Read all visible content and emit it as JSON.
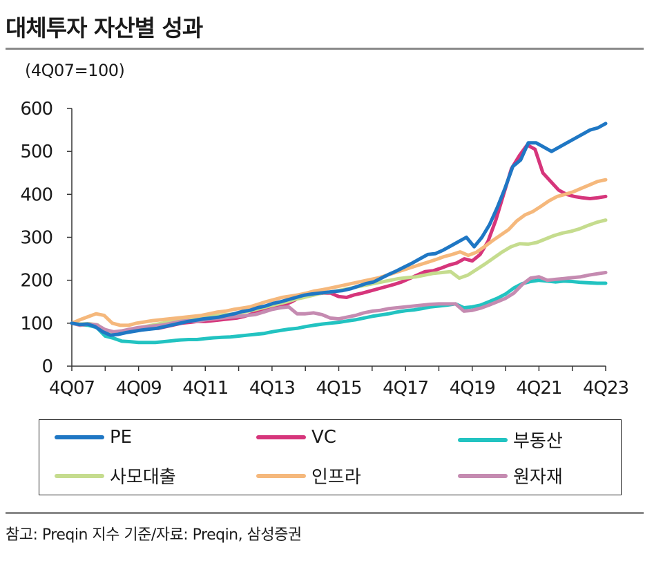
{
  "title": "대체투자 자산별 성과",
  "source": "참고: Preqin 지수 기준/자료: Preqin, 삼성증권",
  "chart_data": {
    "type": "line",
    "unit_label": "(4Q07=100)",
    "ylim": [
      0,
      600
    ],
    "yticks": [
      0,
      100,
      200,
      300,
      400,
      500,
      600
    ],
    "xlabels": [
      "4Q07",
      "4Q09",
      "4Q11",
      "4Q13",
      "4Q15",
      "4Q17",
      "4Q19",
      "4Q21",
      "4Q23"
    ],
    "x_start": "4Q07",
    "x_end": "4Q23",
    "series": [
      {
        "name": "PE",
        "color": "#1f77c4",
        "values": [
          100,
          97,
          98,
          92,
          80,
          72,
          74,
          78,
          81,
          84,
          86,
          88,
          92,
          96,
          100,
          104,
          107,
          110,
          112,
          114,
          118,
          122,
          127,
          130,
          136,
          140,
          146,
          150,
          155,
          160,
          165,
          168,
          170,
          172,
          174,
          176,
          180,
          186,
          192,
          196,
          205,
          214,
          222,
          231,
          240,
          250,
          260,
          262,
          270,
          280,
          290,
          300,
          278,
          300,
          330,
          370,
          415,
          465,
          480,
          520,
          520,
          510,
          500,
          510,
          520,
          530,
          540,
          550,
          555,
          565
        ]
      },
      {
        "name": "VC",
        "color": "#d6357b",
        "values": [
          100,
          98,
          97,
          94,
          85,
          80,
          78,
          80,
          83,
          86,
          88,
          88,
          92,
          96,
          100,
          102,
          104,
          104,
          106,
          108,
          110,
          112,
          116,
          122,
          128,
          135,
          140,
          142,
          150,
          160,
          168,
          168,
          170,
          170,
          162,
          160,
          166,
          170,
          175,
          180,
          185,
          190,
          196,
          204,
          212,
          220,
          222,
          228,
          235,
          240,
          250,
          245,
          260,
          290,
          340,
          400,
          460,
          490,
          515,
          505,
          450,
          430,
          410,
          400,
          395,
          392,
          390,
          392,
          395
        ]
      },
      {
        "name": "부동산",
        "color": "#22c3c1",
        "values": [
          100,
          96,
          95,
          90,
          70,
          65,
          58,
          57,
          55,
          55,
          55,
          57,
          59,
          61,
          62,
          62,
          64,
          66,
          67,
          68,
          70,
          72,
          74,
          76,
          80,
          83,
          86,
          88,
          92,
          95,
          98,
          100,
          102,
          105,
          108,
          112,
          116,
          119,
          122,
          126,
          129,
          131,
          134,
          138,
          140,
          142,
          145,
          136,
          138,
          142,
          150,
          158,
          168,
          182,
          192,
          197,
          200,
          198,
          196,
          198,
          197,
          195,
          194,
          193,
          193
        ]
      },
      {
        "name": "사모대출",
        "color": "#c5dc8e",
        "values": [
          100,
          98,
          99,
          96,
          80,
          76,
          78,
          86,
          90,
          94,
          98,
          102,
          106,
          110,
          112,
          114,
          116,
          118,
          120,
          122,
          126,
          130,
          135,
          140,
          145,
          150,
          156,
          160,
          165,
          170,
          172,
          176,
          180,
          184,
          188,
          192,
          196,
          200,
          204,
          206,
          208,
          212,
          216,
          218,
          220,
          205,
          212,
          225,
          238,
          252,
          266,
          278,
          285,
          284,
          288,
          296,
          304,
          310,
          314,
          320,
          328,
          335,
          340
        ]
      },
      {
        "name": "인프라",
        "color": "#f5b87c",
        "values": [
          100,
          108,
          115,
          122,
          118,
          100,
          95,
          95,
          100,
          103,
          106,
          108,
          110,
          112,
          114,
          116,
          118,
          122,
          126,
          128,
          132,
          135,
          138,
          144,
          150,
          155,
          160,
          163,
          166,
          170,
          175,
          178,
          182,
          186,
          190,
          194,
          198,
          202,
          206,
          212,
          218,
          224,
          230,
          236,
          242,
          248,
          255,
          260,
          266,
          258,
          265,
          278,
          292,
          305,
          318,
          338,
          352,
          360,
          372,
          385,
          395,
          400,
          406,
          414,
          422,
          430,
          434
        ]
      },
      {
        "name": "원자재",
        "color": "#c58bb1",
        "values": [
          100,
          95,
          98,
          96,
          85,
          80,
          82,
          86,
          90,
          92,
          94,
          96,
          100,
          104,
          106,
          104,
          108,
          110,
          112,
          114,
          116,
          118,
          120,
          126,
          132,
          136,
          138,
          122,
          122,
          124,
          120,
          112,
          110,
          114,
          118,
          124,
          128,
          130,
          134,
          136,
          138,
          140,
          142,
          144,
          145,
          145,
          145,
          128,
          130,
          135,
          142,
          150,
          158,
          170,
          190,
          205,
          208,
          200,
          202,
          204,
          206,
          208,
          212,
          215,
          218
        ]
      }
    ]
  }
}
